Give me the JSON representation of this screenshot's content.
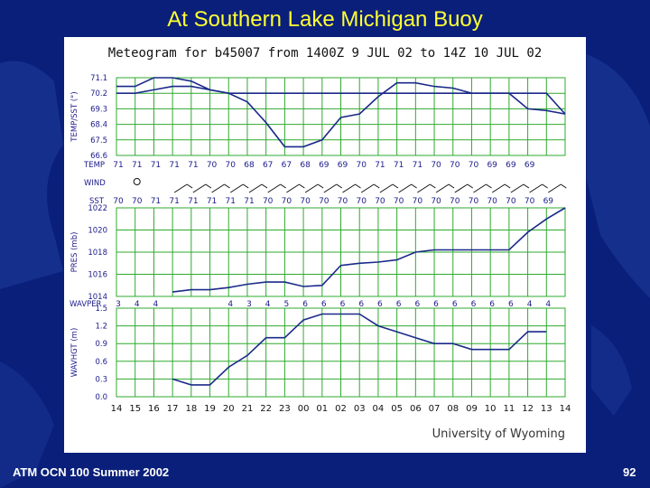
{
  "slide": {
    "title": "At Southern Lake Michigan Buoy",
    "footer_left": "ATM OCN 100 Summer 2002",
    "page_number": "92"
  },
  "colors": {
    "background": "#0a1f7a",
    "title": "#ffff33",
    "grid": "#2faa2f",
    "line": "#1a2a8a",
    "text": "#1a1a8a"
  },
  "chart_data": {
    "type": "line",
    "title": "Meteogram for b45007 from 1400Z  9 JUL 02 to 14Z 10 JUL 02",
    "credit": "University of Wyoming",
    "x_hours": [
      "14",
      "15",
      "16",
      "17",
      "18",
      "19",
      "20",
      "21",
      "22",
      "23",
      "00",
      "01",
      "02",
      "03",
      "04",
      "05",
      "06",
      "07",
      "08",
      "09",
      "10",
      "11",
      "12",
      "13",
      "14"
    ],
    "panels": [
      {
        "id": "temp",
        "ylabel": "TEMP/SST (°)",
        "ylim": [
          66.6,
          71.1
        ],
        "ticks": [
          "71.1",
          "70.2",
          "69.3",
          "68.4",
          "67.5",
          "66.6"
        ],
        "series": [
          {
            "values": [
              70.6,
              70.6,
              71.1,
              71.1,
              70.9,
              70.4,
              70.2,
              69.7,
              68.5,
              67.1,
              67.1,
              67.5,
              68.8,
              69.0,
              70.0,
              70.8,
              70.8,
              70.6,
              70.5,
              70.2,
              70.2,
              70.2,
              69.3,
              69.2,
              69.0
            ]
          },
          {
            "values": [
              70.2,
              70.2,
              70.4,
              70.6,
              70.6,
              70.4,
              70.2,
              70.2,
              70.2,
              70.2,
              70.2,
              70.2,
              70.2,
              70.2,
              70.2,
              70.2,
              70.2,
              70.2,
              70.2,
              70.2,
              70.2,
              70.2,
              70.2,
              70.2,
              69.0
            ]
          }
        ]
      },
      {
        "id": "pres",
        "ylabel": "PRES (mb)",
        "ylim": [
          1014,
          1022
        ],
        "ticks": [
          "1022",
          "1020",
          "1018",
          "1016",
          "1014"
        ],
        "series": [
          {
            "values": [
              null,
              null,
              null,
              1014.4,
              1014.6,
              1014.6,
              1014.8,
              1015.1,
              1015.3,
              1015.3,
              1014.9,
              1015.0,
              1016.8,
              1017.0,
              1017.1,
              1017.3,
              1018.0,
              1018.2,
              1018.2,
              1018.2,
              1018.2,
              1018.2,
              1019.8,
              1021.0,
              1022.0
            ]
          }
        ]
      },
      {
        "id": "wave",
        "ylabel": "WAVHGT (m)",
        "ylim": [
          0,
          1.5
        ],
        "ticks": [
          "1.5",
          "1.2",
          "0.9",
          "0.6",
          "0.3",
          "0.0"
        ],
        "series": [
          {
            "values": [
              null,
              null,
              null,
              0.3,
              0.2,
              0.2,
              0.5,
              0.7,
              1.0,
              1.0,
              1.3,
              1.4,
              1.4,
              1.4,
              1.2,
              1.1,
              1.0,
              0.9,
              0.9,
              0.8,
              0.8,
              0.8,
              1.1,
              1.1,
              null
            ]
          }
        ]
      }
    ],
    "text_rows": {
      "temp_label": "TEMP",
      "temp": [
        "71",
        "71",
        "71",
        "71",
        "71",
        "70",
        "70",
        "68",
        "67",
        "67",
        "68",
        "69",
        "69",
        "70",
        "71",
        "71",
        "71",
        "70",
        "70",
        "70",
        "69",
        "69",
        "69",
        "",
        ""
      ],
      "wind_label": "WIND",
      "sst_label": "SST",
      "sst": [
        "70",
        "70",
        "71",
        "71",
        "71",
        "71",
        "71",
        "71",
        "70",
        "70",
        "70",
        "70",
        "70",
        "70",
        "70",
        "70",
        "70",
        "70",
        "70",
        "70",
        "70",
        "70",
        "70",
        "69",
        ""
      ],
      "wavper_label": "WAVPER",
      "wavper": [
        "3",
        "4",
        "4",
        "",
        "",
        "",
        "4",
        "3",
        "4",
        "5",
        "6",
        "6",
        "6",
        "6",
        "6",
        "6",
        "6",
        "6",
        "6",
        "6",
        "6",
        "6",
        "4",
        "4",
        ""
      ]
    }
  }
}
